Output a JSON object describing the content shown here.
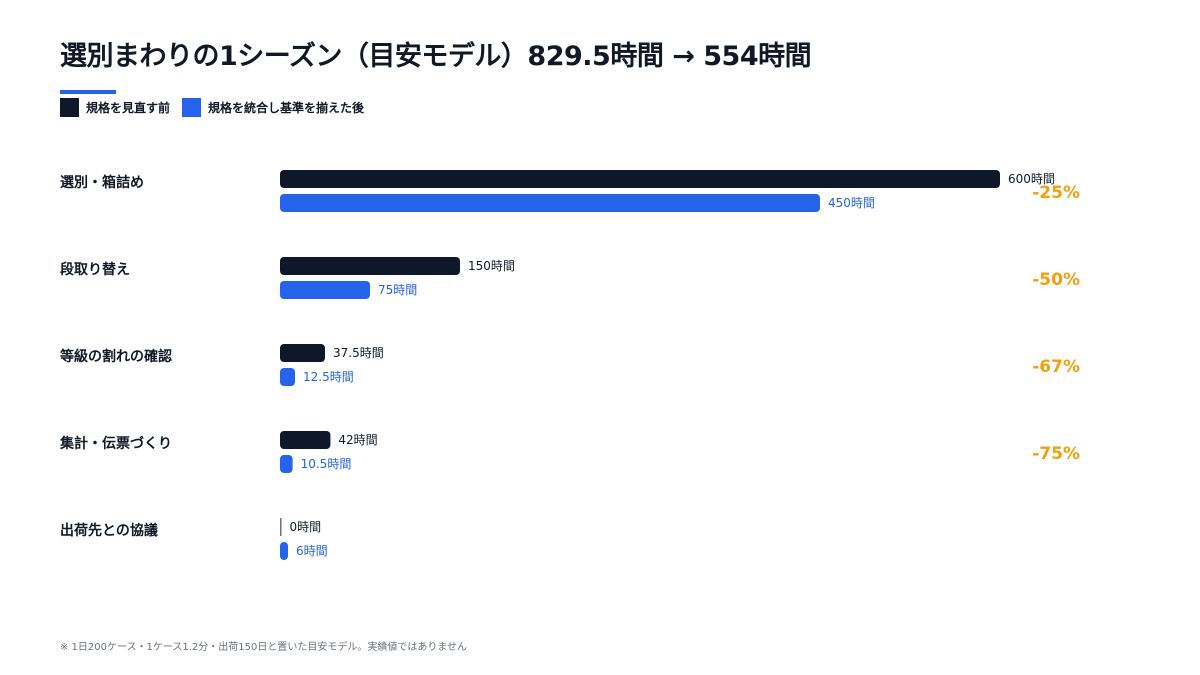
{
  "title": "選別まわりの1シーズン（目安モデル）829.5時間 → 554時間",
  "legend": {
    "before_label": "規格を見直す前",
    "after_label": "規格を統合し基準を揃えた後"
  },
  "colors": {
    "before": "#0f172a",
    "after": "#2563eb",
    "accent": "#2563eb",
    "percent": "#f59e0b"
  },
  "chart_data": {
    "type": "bar",
    "orientation": "horizontal",
    "title": "選別まわりの1シーズン（目安モデル）829.5時間 → 554時間",
    "categories": [
      "選別・箱詰め",
      "段取り替え",
      "等級の割れの確認",
      "集計・伝票づくり",
      "出荷先との協議"
    ],
    "series": [
      {
        "name": "規格を見直す前",
        "values": [
          600,
          150,
          37.5,
          42,
          0
        ],
        "value_labels": [
          "600時間",
          "150時間",
          "37.5時間",
          "42時間",
          "0時間"
        ]
      },
      {
        "name": "規格を統合し基準を揃えた後",
        "values": [
          450,
          75,
          12.5,
          10.5,
          6
        ],
        "value_labels": [
          "450時間",
          "75時間",
          "12.5時間",
          "10.5時間",
          "6時間"
        ]
      }
    ],
    "change_labels": [
      "-25%",
      "-50%",
      "-67%",
      "-75%",
      ""
    ],
    "xlim": [
      0,
      600
    ],
    "grid": false,
    "legend_position": "top-left"
  },
  "footnote": "※ 1日200ケース・1ケース1.2分・出荷150日と置いた目安モデル。実績値ではありません"
}
